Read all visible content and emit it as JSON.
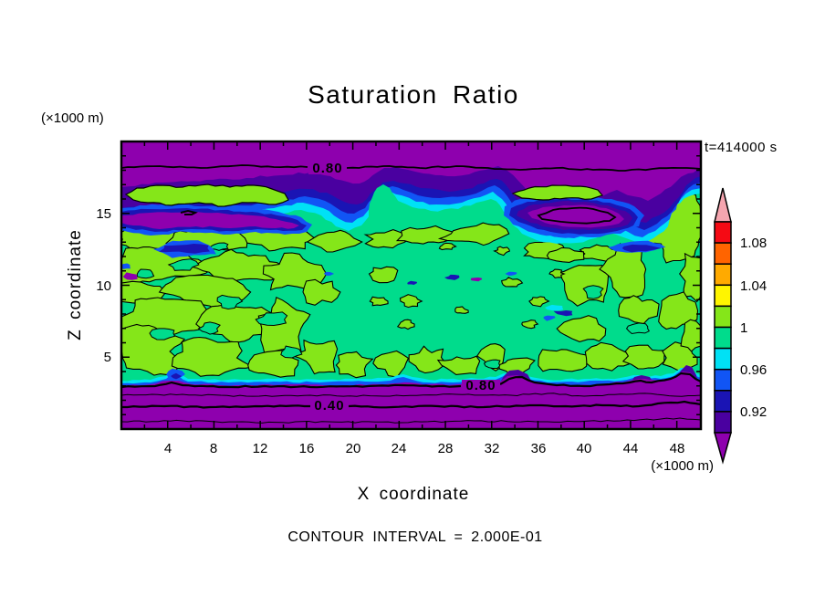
{
  "title": "Saturation Ratio",
  "timestamp": "t=414000 s",
  "footer": "CONTOUR INTERVAL = 2.000E-01",
  "x_axis": {
    "label": "X coordinate",
    "units": "(×1000 m)",
    "ticks": [
      "4",
      "8",
      "12",
      "16",
      "20",
      "24",
      "28",
      "32",
      "36",
      "40",
      "44",
      "48"
    ]
  },
  "y_axis": {
    "label": "Z coordinate",
    "units": "(×1000 m)",
    "ticks": [
      "5",
      "10",
      "15"
    ]
  },
  "colorbar": {
    "tick_labels": [
      "1.08",
      "1.04",
      "1",
      "0.96",
      "0.92"
    ]
  },
  "contour_labels": {
    "top_080": "0.80",
    "bottom_080": "0.80",
    "bottom_040": "0.40"
  },
  "colors": {
    "background": "#ffffff",
    "frame": "#000000",
    "purple": "#8E00AE",
    "indigo": "#4A00A0",
    "navy": "#1A14B4",
    "blue": "#1155F5",
    "cyan": "#00E1F5",
    "spring": "#00DC8C",
    "chartreuse": "#85E619",
    "yellow": "#FFF500",
    "orange": "#FFAA00",
    "orange_red": "#FF6400",
    "red": "#F50A14",
    "pink": "#F5A5AF"
  },
  "chart_data": {
    "type": "heatmap",
    "subtype": "filled-contour",
    "title": "Saturation Ratio",
    "xlabel": "X coordinate (×1000 m)",
    "ylabel": "Z coordinate (×1000 m)",
    "xlim": [
      0,
      50
    ],
    "ylim": [
      0,
      20
    ],
    "x_ticks": [
      4,
      8,
      12,
      16,
      20,
      24,
      28,
      32,
      36,
      40,
      44,
      48
    ],
    "y_ticks": [
      5,
      10,
      15
    ],
    "time_annotation": "t=414000 s",
    "contour_interval": 0.2,
    "contour_interval_label": "CONTOUR INTERVAL = 2.000E-01",
    "colorbar_tick_values": [
      1.08,
      1.04,
      1,
      0.96,
      0.92
    ],
    "color_levels": [
      {
        "range": "> 1.10",
        "color": "#F5A5AF"
      },
      {
        "range": "1.08 - 1.10",
        "color": "#F50A14"
      },
      {
        "range": "1.06 - 1.08",
        "color": "#FF6400"
      },
      {
        "range": "1.04 - 1.06",
        "color": "#FFAA00"
      },
      {
        "range": "1.02 - 1.04",
        "color": "#FFF500"
      },
      {
        "range": "1.00 - 1.02",
        "color": "#85E619"
      },
      {
        "range": "0.98 - 1.00",
        "color": "#00DC8C"
      },
      {
        "range": "0.96 - 0.98",
        "color": "#00E1F5"
      },
      {
        "range": "0.94 - 0.96",
        "color": "#1155F5"
      },
      {
        "range": "0.92 - 0.94",
        "color": "#1A14B4"
      },
      {
        "range": "0.90 - 0.92",
        "color": "#4A00A0"
      },
      {
        "range": "< 0.90",
        "color": "#8E00AE"
      }
    ],
    "labeled_contours": [
      {
        "value": 0.8,
        "x": 17.7,
        "z": 18.2,
        "region": "upper subsaturated band"
      },
      {
        "value": 0.8,
        "x": 31.0,
        "z": 3.0,
        "region": "lower subsaturated band"
      },
      {
        "value": 0.4,
        "x": 18.0,
        "z": 1.6,
        "region": "lower subsaturated band"
      }
    ],
    "field_summary": [
      {
        "z_range": [
          18.5,
          20
        ],
        "value": "S < 0.8, deep purple band along domain top"
      },
      {
        "z_range": [
          16.5,
          18.5
        ],
        "value": "0.80-0.98 transition (indigo/navy/blue/cyan) with S<0.90 pockets near x=7-17 and x=34-45, green islands near x=1-15 and x=34-42"
      },
      {
        "z_range": [
          3.5,
          16.5
        ],
        "value": "S = 0.98-1.02 (spring green / chartreuse patches separated by the 1.00 contour), scattered small subsaturated specks"
      },
      {
        "z_range": [
          3.0,
          3.5
        ],
        "value": "thin 0.90-0.98 cyan/blue transition strip"
      },
      {
        "z_range": [
          0,
          3.0
        ],
        "value": "S < 0.90 purple surface band, values decrease downward through 0.8, 0.6, 0.4, 0.2 contours"
      }
    ]
  }
}
